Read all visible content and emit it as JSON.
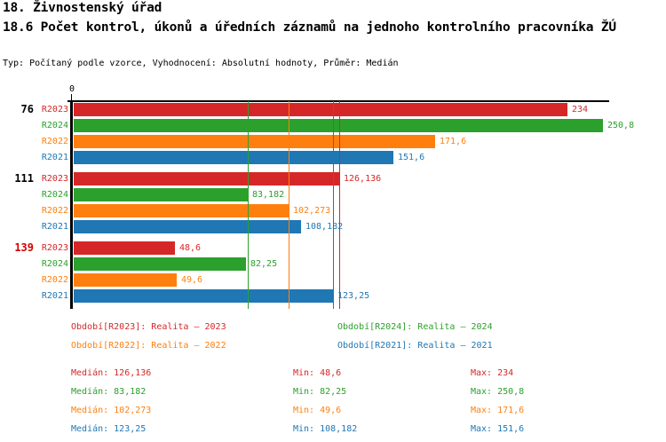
{
  "header": {
    "title": "18. Živnostenský úřad",
    "subtitle": "18.6 Počet kontrol, úkonů a úředních záznamů na jednoho kontrolního pracovníka ŽÚ",
    "meta": "Typ: Počítaný podle vzorce, Vyhodnocení: Absolutní hodnoty, Průměr: Medián"
  },
  "chart_data": {
    "type": "bar",
    "orientation": "horizontal",
    "x_origin_label": "0",
    "xlim": [
      0,
      254
    ],
    "grid": false,
    "legend_position": "below",
    "series": [
      {
        "id": "R2023",
        "color": "#d62728",
        "legend": "Období[R2023]: Realita – 2023",
        "median": 126.136,
        "stats": {
          "median_text": "Medián: 126,136",
          "min_text": "Min: 48,6",
          "max_text": "Max: 234"
        }
      },
      {
        "id": "R2024",
        "color": "#2ca02c",
        "legend": "Období[R2024]: Realita – 2024",
        "median": 83.182,
        "stats": {
          "median_text": "Medián: 83,182",
          "min_text": "Min: 82,25",
          "max_text": "Max: 250,8"
        }
      },
      {
        "id": "R2022",
        "color": "#ff7f0e",
        "legend": "Období[R2022]: Realita – 2022",
        "median": 102.273,
        "stats": {
          "median_text": "Medián: 102,273",
          "min_text": "Min: 49,6",
          "max_text": "Max: 171,6"
        }
      },
      {
        "id": "R2021",
        "color": "#1f77b4",
        "legend": "Období[R2021]: Realita – 2021",
        "median": 123.25,
        "stats": {
          "median_text": "Medián: 123,25",
          "min_text": "Min: 108,182",
          "max_text": "Max: 151,6"
        }
      }
    ],
    "groups": [
      {
        "label": "76",
        "label_color": "#000000",
        "bars": [
          {
            "series": "R2023",
            "value": 234,
            "display": "234"
          },
          {
            "series": "R2024",
            "value": 250.8,
            "display": "250,8"
          },
          {
            "series": "R2022",
            "value": 171.6,
            "display": "171,6"
          },
          {
            "series": "R2021",
            "value": 151.6,
            "display": "151,6"
          }
        ]
      },
      {
        "label": "111",
        "label_color": "#000000",
        "bars": [
          {
            "series": "R2023",
            "value": 126.136,
            "display": "126,136"
          },
          {
            "series": "R2024",
            "value": 83.182,
            "display": "83,182"
          },
          {
            "series": "R2022",
            "value": 102.273,
            "display": "102,273"
          },
          {
            "series": "R2021",
            "value": 108.182,
            "display": "108,182"
          }
        ]
      },
      {
        "label": "139",
        "label_color": "#d40000",
        "bars": [
          {
            "series": "R2023",
            "value": 48.6,
            "display": "48,6"
          },
          {
            "series": "R2024",
            "value": 82.25,
            "display": "82,25"
          },
          {
            "series": "R2022",
            "value": 49.6,
            "display": "49,6"
          },
          {
            "series": "R2021",
            "value": 123.25,
            "display": "123,25"
          }
        ]
      }
    ]
  }
}
